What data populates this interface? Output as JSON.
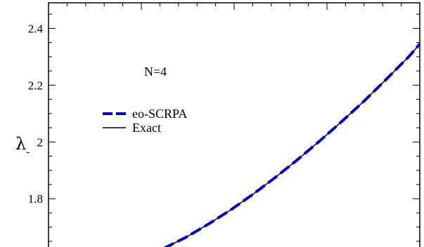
{
  "chart_data": {
    "type": "line",
    "ylabel": "λ",
    "ylabel_subscript": "-",
    "annotation": "N=4",
    "ylim": [
      1.625,
      2.49
    ],
    "xlim": [
      0,
      1
    ],
    "yticks": [
      {
        "value": 1.8,
        "label": "1.8"
      },
      {
        "value": 2.0,
        "label": "2"
      },
      {
        "value": 2.2,
        "label": "2.2"
      },
      {
        "value": 2.4,
        "label": "2.4"
      }
    ],
    "grid": false,
    "legend_position": "upper-left",
    "series": [
      {
        "name": "eo-SCRPA",
        "color": "#0000cc",
        "style": "dashed",
        "x": [
          0.31,
          0.37,
          0.43,
          0.49,
          0.55,
          0.61,
          0.67,
          0.73,
          0.79,
          0.85,
          0.91,
          0.97,
          1.0
        ],
        "y": [
          1.625,
          1.664,
          1.71,
          1.76,
          1.815,
          1.874,
          1.937,
          2.003,
          2.072,
          2.144,
          2.221,
          2.3,
          2.345
        ]
      },
      {
        "name": "Exact",
        "color": "#000000",
        "style": "solid",
        "x": [
          0.31,
          0.37,
          0.43,
          0.49,
          0.55,
          0.61,
          0.67,
          0.73,
          0.79,
          0.85,
          0.91,
          0.97,
          1.0
        ],
        "y": [
          1.625,
          1.664,
          1.71,
          1.76,
          1.815,
          1.874,
          1.937,
          2.003,
          2.072,
          2.144,
          2.221,
          2.3,
          2.345
        ]
      }
    ]
  }
}
